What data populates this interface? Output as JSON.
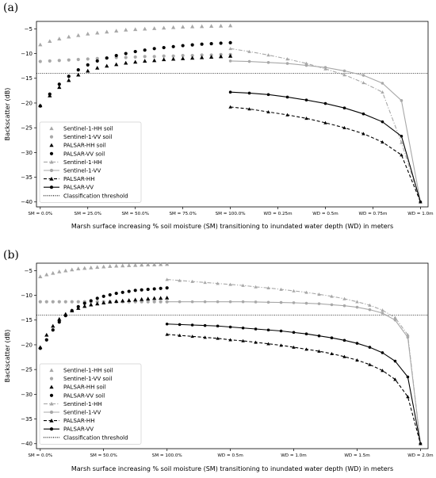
{
  "colors": {
    "s1": "#a8a8a8",
    "palsar": "#000000",
    "threshold": "#000000"
  },
  "chart_data": [
    {
      "type": "scatter",
      "panel_label": "(a)",
      "xlabel": "Marsh surface increasing % soil moisture (SM) transitioning to inundated water depth (WD) in meters",
      "ylabel": "Backscatter (dB)",
      "xlim": [
        -0.2,
        20.4
      ],
      "ylim": [
        -41,
        -3.5
      ],
      "yticks": [
        -5,
        -10,
        -15,
        -20,
        -25,
        -30,
        -35,
        -40
      ],
      "xtick_positions": [
        0,
        2.5,
        5,
        7.5,
        10,
        12.5,
        15,
        17.5,
        20
      ],
      "xtick_labels": [
        "SM = 0.0%",
        "SM = 25.0%",
        "SM = 50.0%",
        "SM = 75.0%",
        "SM = 100.0%",
        "WD = 0.25m",
        "WD = 0.5m",
        "WD = 0.75m",
        "WD = 1.0m"
      ],
      "threshold": -14,
      "legend_position": "lower-left",
      "legend": [
        {
          "label": "Sentinel-1-HH soil",
          "color": "#a8a8a8",
          "marker": "triangle",
          "line": "none"
        },
        {
          "label": "Sentinel-1-VV soil",
          "color": "#a8a8a8",
          "marker": "circle",
          "line": "none"
        },
        {
          "label": "PALSAR-HH soil",
          "color": "#000000",
          "marker": "triangle",
          "line": "none"
        },
        {
          "label": "PALSAR-VV soil",
          "color": "#000000",
          "marker": "circle",
          "line": "none"
        },
        {
          "label": "Sentinel-1-HH",
          "color": "#a8a8a8",
          "marker": "triangle",
          "line": "dashdot"
        },
        {
          "label": "Sentinel-1-VV",
          "color": "#a8a8a8",
          "marker": "circle",
          "line": "solid"
        },
        {
          "label": "PALSAR-HH",
          "color": "#000000",
          "marker": "triangle",
          "line": "dashed"
        },
        {
          "label": "PALSAR-VV",
          "color": "#000000",
          "marker": "circle",
          "line": "solid"
        },
        {
          "label": "Classification threshold",
          "color": "#000000",
          "marker": "none",
          "line": "dotted"
        }
      ],
      "series": [
        {
          "name": "Sentinel-1-HH soil",
          "color": "#a8a8a8",
          "marker": "triangle",
          "line": "none",
          "x": [
            0,
            0.5,
            1,
            1.5,
            2,
            2.5,
            3,
            3.5,
            4,
            4.5,
            5,
            5.5,
            6,
            6.5,
            7,
            7.5,
            8,
            8.5,
            9,
            9.5,
            10
          ],
          "y": [
            -8.2,
            -7.5,
            -7.0,
            -6.6,
            -6.3,
            -6.0,
            -5.8,
            -5.6,
            -5.4,
            -5.2,
            -5.1,
            -5.0,
            -4.9,
            -4.8,
            -4.7,
            -4.6,
            -4.55,
            -4.5,
            -4.45,
            -4.4,
            -4.35
          ]
        },
        {
          "name": "Sentinel-1-VV soil",
          "color": "#a8a8a8",
          "marker": "circle",
          "line": "none",
          "x": [
            0,
            0.5,
            1,
            1.5,
            2,
            2.5,
            3,
            3.5,
            4,
            4.5,
            5,
            5.5,
            6,
            6.5,
            7,
            7.5,
            8,
            8.5,
            9,
            9.5,
            10
          ],
          "y": [
            -11.6,
            -11.5,
            -11.4,
            -11.3,
            -11.2,
            -11.1,
            -11.0,
            -10.9,
            -10.8,
            -10.8,
            -10.7,
            -10.6,
            -10.6,
            -10.5,
            -10.5,
            -10.4,
            -10.4,
            -10.3,
            -10.3,
            -10.2,
            -10.2
          ]
        },
        {
          "name": "PALSAR-HH soil",
          "color": "#000000",
          "marker": "triangle",
          "line": "none",
          "x": [
            0,
            0.5,
            1,
            1.5,
            2,
            2.5,
            3,
            3.5,
            4,
            4.5,
            5,
            5.5,
            6,
            6.5,
            7,
            7.5,
            8,
            8.5,
            9,
            9.5,
            10
          ],
          "y": [
            -20.5,
            -18.5,
            -16.8,
            -15.4,
            -14.3,
            -13.5,
            -12.9,
            -12.5,
            -12.2,
            -11.9,
            -11.7,
            -11.5,
            -11.4,
            -11.2,
            -11.1,
            -11.0,
            -10.9,
            -10.8,
            -10.7,
            -10.6,
            -10.5
          ]
        },
        {
          "name": "PALSAR-VV soil",
          "color": "#000000",
          "marker": "circle",
          "line": "none",
          "x": [
            0,
            0.5,
            1,
            1.5,
            2,
            2.5,
            3,
            3.5,
            4,
            4.5,
            5,
            5.5,
            6,
            6.5,
            7,
            7.5,
            8,
            8.5,
            9,
            9.5,
            10
          ],
          "y": [
            -20.6,
            -18.2,
            -16.2,
            -14.6,
            -13.3,
            -12.3,
            -11.5,
            -10.9,
            -10.4,
            -10.0,
            -9.6,
            -9.3,
            -9.0,
            -8.8,
            -8.6,
            -8.4,
            -8.25,
            -8.1,
            -8.0,
            -7.9,
            -7.8
          ]
        },
        {
          "name": "Sentinel-1-HH",
          "color": "#a8a8a8",
          "marker": "triangle",
          "line": "dashdot",
          "x": [
            10,
            11,
            12,
            13,
            14,
            15,
            16,
            17,
            18,
            19,
            20
          ],
          "y": [
            -9.0,
            -9.6,
            -10.3,
            -11.1,
            -12.0,
            -13.1,
            -14.3,
            -15.9,
            -17.8,
            -28.0,
            -40.0
          ]
        },
        {
          "name": "Sentinel-1-VV",
          "color": "#a8a8a8",
          "marker": "circle",
          "line": "solid",
          "x": [
            10,
            11,
            12,
            13,
            14,
            15,
            16,
            17,
            18,
            19,
            20
          ],
          "y": [
            -11.5,
            -11.6,
            -11.8,
            -12.0,
            -12.4,
            -12.8,
            -13.5,
            -14.4,
            -16.0,
            -19.5,
            -40.0
          ]
        },
        {
          "name": "PALSAR-HH",
          "color": "#000000",
          "marker": "triangle",
          "line": "dashed",
          "x": [
            10,
            11,
            12,
            13,
            14,
            15,
            16,
            17,
            18,
            19,
            20
          ],
          "y": [
            -20.8,
            -21.2,
            -21.8,
            -22.4,
            -23.1,
            -24.0,
            -25.0,
            -26.2,
            -27.9,
            -30.5,
            -40.0
          ]
        },
        {
          "name": "PALSAR-VV",
          "color": "#000000",
          "marker": "circle",
          "line": "solid",
          "x": [
            10,
            11,
            12,
            13,
            14,
            15,
            16,
            17,
            18,
            19,
            20
          ],
          "y": [
            -17.8,
            -18.0,
            -18.3,
            -18.8,
            -19.4,
            -20.1,
            -21.0,
            -22.2,
            -23.8,
            -26.7,
            -40.0
          ]
        }
      ]
    },
    {
      "type": "scatter",
      "panel_label": "(b)",
      "xlabel": "Marsh surface increasing % soil moisture (SM) transitioning to inundated water depth (WD) in meters",
      "ylabel": "Backscatter (dB)",
      "xlim": [
        -0.2,
        20.4
      ],
      "ylim": [
        -41,
        -3.5
      ],
      "yticks": [
        -5,
        -10,
        -15,
        -20,
        -25,
        -30,
        -35,
        -40
      ],
      "xtick_positions": [
        0,
        2.5,
        5,
        7.5,
        10,
        12.5,
        15,
        17.5,
        20
      ],
      "xtick_labels": [
        "SM = 0.0%",
        "SM = 50.0%",
        "SM = 100.0%",
        "WD = 0.5m",
        "WD = 1.0m",
        "WD = 1.5m",
        "WD = 2.0m"
      ],
      "xtick_label_positions": [
        0,
        3.33,
        6.67,
        10,
        13.33,
        16.67,
        20
      ],
      "threshold": -14,
      "legend_position": "lower-left",
      "legend": [
        {
          "label": "Sentinel-1-HH soil",
          "color": "#a8a8a8",
          "marker": "triangle",
          "line": "none"
        },
        {
          "label": "Sentinel-1-VV soil",
          "color": "#a8a8a8",
          "marker": "circle",
          "line": "none"
        },
        {
          "label": "PALSAR-HH soil",
          "color": "#000000",
          "marker": "triangle",
          "line": "none"
        },
        {
          "label": "PALSAR-VV soil",
          "color": "#000000",
          "marker": "circle",
          "line": "none"
        },
        {
          "label": "Sentinel-1-HH",
          "color": "#a8a8a8",
          "marker": "triangle",
          "line": "dashdot"
        },
        {
          "label": "Sentinel-1-VV",
          "color": "#a8a8a8",
          "marker": "circle",
          "line": "solid"
        },
        {
          "label": "PALSAR-HH",
          "color": "#000000",
          "marker": "triangle",
          "line": "dashed"
        },
        {
          "label": "PALSAR-VV",
          "color": "#000000",
          "marker": "circle",
          "line": "solid"
        },
        {
          "label": "Classification threshold",
          "color": "#000000",
          "marker": "none",
          "line": "dotted"
        }
      ],
      "series": [
        {
          "name": "Sentinel-1-HH soil",
          "color": "#a8a8a8",
          "marker": "triangle",
          "line": "none",
          "x": [
            0,
            0.333,
            0.667,
            1,
            1.333,
            1.667,
            2,
            2.333,
            2.667,
            3,
            3.333,
            3.667,
            4,
            4.333,
            4.667,
            5,
            5.333,
            5.667,
            6,
            6.333,
            6.667
          ],
          "y": [
            -6.2,
            -5.8,
            -5.5,
            -5.2,
            -5.0,
            -4.8,
            -4.6,
            -4.5,
            -4.4,
            -4.3,
            -4.2,
            -4.1,
            -4.05,
            -4.0,
            -3.95,
            -3.9,
            -3.85,
            -3.8,
            -3.8,
            -3.75,
            -3.7
          ]
        },
        {
          "name": "Sentinel-1-VV soil",
          "color": "#a8a8a8",
          "marker": "circle",
          "line": "none",
          "x": [
            0,
            0.333,
            0.667,
            1,
            1.333,
            1.667,
            2,
            2.333,
            2.667,
            3,
            3.333,
            3.667,
            4,
            4.333,
            4.667,
            5,
            5.333,
            5.667,
            6,
            6.333,
            6.667
          ],
          "y": [
            -11.3,
            -11.3,
            -11.3,
            -11.3,
            -11.3,
            -11.3,
            -11.3,
            -11.3,
            -11.3,
            -11.3,
            -11.3,
            -11.3,
            -11.3,
            -11.3,
            -11.3,
            -11.3,
            -11.3,
            -11.3,
            -11.3,
            -11.3,
            -11.3
          ]
        },
        {
          "name": "PALSAR-HH soil",
          "color": "#000000",
          "marker": "triangle",
          "line": "none",
          "x": [
            0,
            0.333,
            0.667,
            1,
            1.333,
            1.667,
            2,
            2.333,
            2.667,
            3,
            3.333,
            3.667,
            4,
            4.333,
            4.667,
            5,
            5.333,
            5.667,
            6,
            6.333,
            6.667
          ],
          "y": [
            -20.5,
            -18.0,
            -16.2,
            -14.8,
            -13.8,
            -13.1,
            -12.6,
            -12.2,
            -11.9,
            -11.7,
            -11.5,
            -11.3,
            -11.2,
            -11.1,
            -11.0,
            -10.9,
            -10.8,
            -10.7,
            -10.6,
            -10.55,
            -10.5
          ]
        },
        {
          "name": "PALSAR-VV soil",
          "color": "#000000",
          "marker": "circle",
          "line": "none",
          "x": [
            0,
            0.333,
            0.667,
            1,
            1.333,
            1.667,
            2,
            2.333,
            2.667,
            3,
            3.333,
            3.667,
            4,
            4.333,
            4.667,
            5,
            5.333,
            5.667,
            6,
            6.333,
            6.667
          ],
          "y": [
            -20.7,
            -19.0,
            -17.0,
            -15.4,
            -14.1,
            -13.1,
            -12.3,
            -11.6,
            -11.1,
            -10.6,
            -10.2,
            -9.9,
            -9.6,
            -9.4,
            -9.2,
            -9.0,
            -8.9,
            -8.8,
            -8.7,
            -8.6,
            -8.5
          ]
        },
        {
          "name": "Sentinel-1-HH",
          "color": "#a8a8a8",
          "marker": "triangle",
          "line": "dashdot",
          "x": [
            6.667,
            7.333,
            8,
            8.667,
            9.333,
            10,
            10.667,
            11.333,
            12,
            12.667,
            13.333,
            14,
            14.667,
            15.333,
            16,
            16.667,
            17.333,
            18,
            18.667,
            19.333,
            20
          ],
          "y": [
            -6.8,
            -7.0,
            -7.2,
            -7.4,
            -7.6,
            -7.8,
            -8.0,
            -8.3,
            -8.5,
            -8.8,
            -9.1,
            -9.4,
            -9.8,
            -10.2,
            -10.7,
            -11.3,
            -12.0,
            -13.0,
            -14.5,
            -18.0,
            -40.0
          ]
        },
        {
          "name": "Sentinel-1-VV",
          "color": "#a8a8a8",
          "marker": "circle",
          "line": "solid",
          "x": [
            6.667,
            7.333,
            8,
            8.667,
            9.333,
            10,
            10.667,
            11.333,
            12,
            12.667,
            13.333,
            14,
            14.667,
            15.333,
            16,
            16.667,
            17.333,
            18,
            18.667,
            19.333,
            20
          ],
          "y": [
            -11.3,
            -11.3,
            -11.3,
            -11.3,
            -11.3,
            -11.3,
            -11.3,
            -11.35,
            -11.4,
            -11.45,
            -11.5,
            -11.6,
            -11.7,
            -11.9,
            -12.1,
            -12.4,
            -12.9,
            -13.6,
            -15.0,
            -18.5,
            -40.0
          ]
        },
        {
          "name": "PALSAR-HH",
          "color": "#000000",
          "marker": "triangle",
          "line": "dashed",
          "x": [
            6.667,
            7.333,
            8,
            8.667,
            9.333,
            10,
            10.667,
            11.333,
            12,
            12.667,
            13.333,
            14,
            14.667,
            15.333,
            16,
            16.667,
            17.333,
            18,
            18.667,
            19.333,
            20
          ],
          "y": [
            -17.9,
            -18.1,
            -18.3,
            -18.5,
            -18.7,
            -19.0,
            -19.2,
            -19.5,
            -19.8,
            -20.1,
            -20.5,
            -20.9,
            -21.3,
            -21.8,
            -22.4,
            -23.1,
            -24.0,
            -25.2,
            -27.0,
            -30.5,
            -40.0
          ]
        },
        {
          "name": "PALSAR-VV",
          "color": "#000000",
          "marker": "circle",
          "line": "solid",
          "x": [
            6.667,
            7.333,
            8,
            8.667,
            9.333,
            10,
            10.667,
            11.333,
            12,
            12.667,
            13.333,
            14,
            14.667,
            15.333,
            16,
            16.667,
            17.333,
            18,
            18.667,
            19.333,
            20
          ],
          "y": [
            -15.8,
            -15.9,
            -16.0,
            -16.1,
            -16.2,
            -16.4,
            -16.6,
            -16.8,
            -17.0,
            -17.2,
            -17.5,
            -17.8,
            -18.2,
            -18.6,
            -19.1,
            -19.7,
            -20.5,
            -21.6,
            -23.3,
            -26.5,
            -40.0
          ]
        }
      ]
    }
  ]
}
